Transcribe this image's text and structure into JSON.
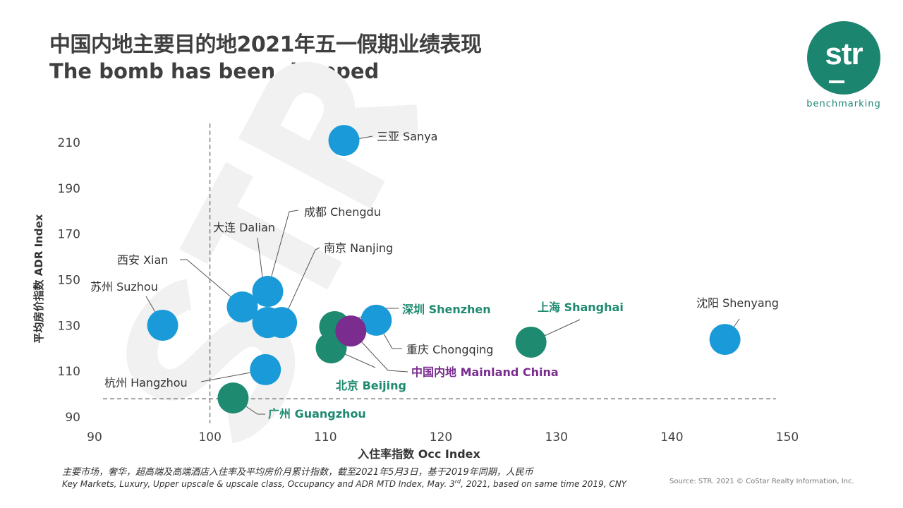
{
  "header": {
    "title": "中国内地主要目的地2021年五一假期业绩表现",
    "subtitle": "The bomb has been dropped"
  },
  "logo": {
    "text": "str",
    "tagline": "benchmarking",
    "color": "#1b8570"
  },
  "watermark": "STR",
  "chart_data": {
    "type": "scatter",
    "xlabel": "入住率指数 Occ Index",
    "ylabel": "平均房价指数 ADR Index",
    "xlim": [
      90,
      150
    ],
    "ylim": [
      90,
      210
    ],
    "x_ticks": [
      "90",
      "100",
      "110",
      "120",
      "130",
      "140",
      "150"
    ],
    "y_ticks": [
      "90",
      "110",
      "130",
      "150",
      "170",
      "190",
      "210"
    ],
    "grid": false,
    "reference_lines": {
      "x": 100,
      "y": 98
    },
    "colors": {
      "market": "#1a9ad8",
      "tier1": "#1e8a70",
      "national": "#7a2d8f"
    },
    "points": [
      {
        "label": "三亚 Sanya",
        "x": 111.6,
        "y": 210.9,
        "group": "market"
      },
      {
        "label": "苏州 Suzhou",
        "x": 95.9,
        "y": 130.1,
        "group": "market"
      },
      {
        "label": "西安 Xian",
        "x": 102.8,
        "y": 138.1,
        "group": "market"
      },
      {
        "label": "成都 Chengdu",
        "x": 105.0,
        "y": 144.9,
        "group": "market"
      },
      {
        "label": "大连 Dalian",
        "x": 105.0,
        "y": 131.3,
        "group": "market"
      },
      {
        "label": "南京 Nanjing",
        "x": 106.2,
        "y": 131.3,
        "group": "market"
      },
      {
        "label": "杭州 Hangzhou",
        "x": 104.8,
        "y": 110.7,
        "group": "market"
      },
      {
        "label": "重庆 Chongqing",
        "x": 114.4,
        "y": 132.3,
        "group": "market"
      },
      {
        "label": "沈阳 Shenyang",
        "x": 144.6,
        "y": 123.9,
        "group": "market"
      },
      {
        "label": "广州 Guangzhou",
        "x": 102.0,
        "y": 98.3,
        "group": "tier1"
      },
      {
        "label": "深圳 Shenzhen",
        "x": 110.8,
        "y": 129.5,
        "group": "tier1"
      },
      {
        "label": "北京 Beijing",
        "x": 110.5,
        "y": 120.2,
        "group": "tier1"
      },
      {
        "label": "上海 Shanghai",
        "x": 127.8,
        "y": 122.7,
        "group": "tier1"
      },
      {
        "label": "中国内地 Mainland  China",
        "x": 112.2,
        "y": 127.6,
        "group": "national"
      }
    ]
  },
  "footer": {
    "note_cn": "主要市场，奢华，超高端及高端酒店入住率及平均房价月累计指数，截至2021年5月3日，基于2019年同期，人民币",
    "note_en_before": "Key Markets, Luxury, Upper upscale & upscale class, Occupancy and ADR MTD Index, May. 3",
    "note_en_sup": "rd",
    "note_en_after": ", 2021,  based on same time 2019,  CNY",
    "source": "Source: STR. 2021 © CoStar Realty Information, Inc."
  }
}
